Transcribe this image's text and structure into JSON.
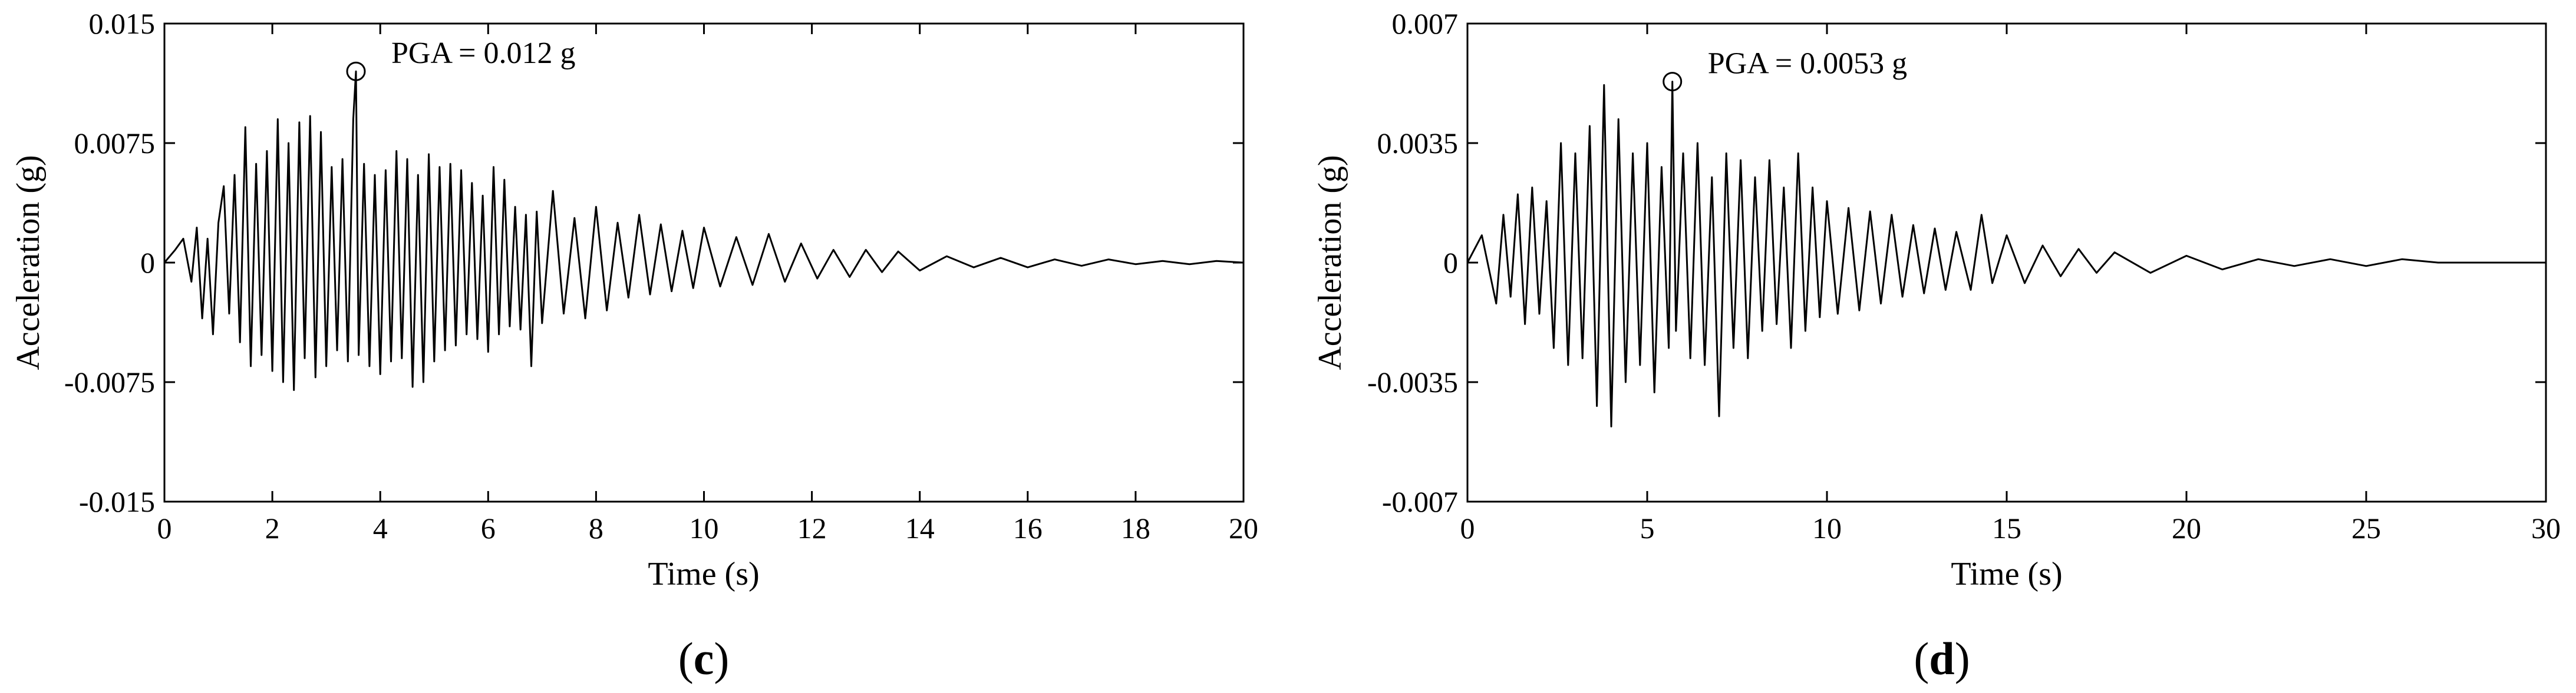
{
  "figure": {
    "panels": [
      {
        "letter": "c",
        "open": "(",
        "close": ")"
      },
      {
        "letter": "d",
        "open": "(",
        "close": ")"
      }
    ]
  },
  "chart_data": [
    {
      "type": "line",
      "title": "",
      "xlabel": "Time (s)",
      "ylabel": "Acceleration (g)",
      "xlim": [
        0,
        20
      ],
      "ylim": [
        -0.015,
        0.015
      ],
      "xticks": [
        0,
        2,
        4,
        6,
        8,
        10,
        12,
        14,
        16,
        18,
        20
      ],
      "yticks": [
        -0.015,
        -0.0075,
        0,
        0.0075,
        0.015
      ],
      "ytick_labels": [
        "-0.015",
        "-0.0075",
        "0",
        "0.0075",
        "0.015"
      ],
      "grid": false,
      "line_color": "#000000",
      "series": [
        {
          "x": [
            0,
            0.2,
            0.35,
            0.5,
            0.6,
            0.7,
            0.8,
            0.9,
            1.0,
            1.1,
            1.2,
            1.3,
            1.4,
            1.5,
            1.6,
            1.7,
            1.8,
            1.9,
            2.0,
            2.1,
            2.2,
            2.3,
            2.4,
            2.5,
            2.6,
            2.7,
            2.8,
            2.9,
            3.0,
            3.1,
            3.2,
            3.3,
            3.4,
            3.5,
            3.55,
            3.6,
            3.7,
            3.8,
            3.9,
            4.0,
            4.1,
            4.2,
            4.3,
            4.4,
            4.5,
            4.6,
            4.7,
            4.8,
            4.9,
            5.0,
            5.1,
            5.2,
            5.3,
            5.4,
            5.5,
            5.6,
            5.7,
            5.8,
            5.9,
            6.0,
            6.1,
            6.2,
            6.3,
            6.4,
            6.5,
            6.6,
            6.7,
            6.8,
            6.9,
            7.0,
            7.2,
            7.4,
            7.6,
            7.8,
            8.0,
            8.2,
            8.4,
            8.6,
            8.8,
            9.0,
            9.2,
            9.4,
            9.6,
            9.8,
            10.0,
            10.3,
            10.6,
            10.9,
            11.2,
            11.5,
            11.8,
            12.1,
            12.4,
            12.7,
            13.0,
            13.3,
            13.6,
            14.0,
            14.5,
            15.0,
            15.5,
            16.0,
            16.5,
            17.0,
            17.5,
            18.0,
            18.5,
            19.0,
            19.5,
            20.0
          ],
          "y": [
            0,
            0.0008,
            0.0015,
            -0.0012,
            0.0022,
            -0.0035,
            0.0015,
            -0.0045,
            0.0025,
            0.0048,
            -0.0032,
            0.0055,
            -0.005,
            0.0085,
            -0.0065,
            0.0062,
            -0.0058,
            0.007,
            -0.0068,
            0.009,
            -0.0075,
            0.0075,
            -0.008,
            0.0088,
            -0.006,
            0.0092,
            -0.0072,
            0.0082,
            -0.0065,
            0.006,
            -0.0055,
            0.0065,
            -0.0062,
            0.009,
            0.012,
            -0.0058,
            0.0062,
            -0.0065,
            0.0055,
            -0.007,
            0.0058,
            -0.0062,
            0.007,
            -0.006,
            0.0065,
            -0.0078,
            0.0055,
            -0.0075,
            0.0068,
            -0.0062,
            0.006,
            -0.0055,
            0.0062,
            -0.0052,
            0.0058,
            -0.0045,
            0.005,
            -0.0048,
            0.0042,
            -0.0056,
            0.006,
            -0.0045,
            0.0052,
            -0.004,
            0.0035,
            -0.0042,
            0.003,
            -0.0065,
            0.0032,
            -0.0038,
            0.0045,
            -0.0032,
            0.0028,
            -0.0035,
            0.0035,
            -0.003,
            0.0025,
            -0.0022,
            0.003,
            -0.002,
            0.0024,
            -0.0018,
            0.002,
            -0.0016,
            0.0022,
            -0.0015,
            0.0016,
            -0.0014,
            0.0018,
            -0.0012,
            0.0012,
            -0.001,
            0.0008,
            -0.0009,
            0.0008,
            -0.0006,
            0.0007,
            -0.0005,
            0.0004,
            -0.0003,
            0.0003,
            -0.0003,
            0.0002,
            -0.0002,
            0.0002,
            -0.0001,
            0.0001,
            -0.0001,
            0.0001,
            0
          ],
          "peak": {
            "x": 3.55,
            "y": 0.012
          }
        }
      ],
      "annotations": [
        {
          "text": "PGA = 0.012 g",
          "x": 3.55,
          "y": 0.012
        }
      ]
    },
    {
      "type": "line",
      "title": "",
      "xlabel": "Time (s)",
      "ylabel": "Acceleration (g)",
      "xlim": [
        0,
        30
      ],
      "ylim": [
        -0.007,
        0.007
      ],
      "xticks": [
        0,
        5,
        10,
        15,
        20,
        25,
        30
      ],
      "yticks": [
        -0.007,
        -0.0035,
        0,
        0.0035,
        0.007
      ],
      "ytick_labels": [
        "-0.007",
        "-0.0035",
        "0",
        "0.0035",
        "0.007"
      ],
      "grid": false,
      "line_color": "#000000",
      "series": [
        {
          "x": [
            0,
            0.4,
            0.8,
            1.0,
            1.2,
            1.4,
            1.6,
            1.8,
            2.0,
            2.2,
            2.4,
            2.6,
            2.8,
            3.0,
            3.2,
            3.4,
            3.6,
            3.8,
            4.0,
            4.2,
            4.4,
            4.6,
            4.8,
            5.0,
            5.2,
            5.4,
            5.6,
            5.7,
            5.8,
            6.0,
            6.2,
            6.4,
            6.6,
            6.8,
            7.0,
            7.2,
            7.4,
            7.6,
            7.8,
            8.0,
            8.2,
            8.4,
            8.6,
            8.8,
            9.0,
            9.2,
            9.4,
            9.6,
            9.8,
            10.0,
            10.3,
            10.6,
            10.9,
            11.2,
            11.5,
            11.8,
            12.1,
            12.4,
            12.7,
            13.0,
            13.3,
            13.6,
            14.0,
            14.3,
            14.6,
            15.0,
            15.5,
            16.0,
            16.5,
            17.0,
            17.5,
            18.0,
            19.0,
            20.0,
            21.0,
            22.0,
            23.0,
            24.0,
            25.0,
            26.0,
            27.0,
            28.0,
            29.0,
            30.0
          ],
          "y": [
            0,
            0.0008,
            -0.0012,
            0.0014,
            -0.001,
            0.002,
            -0.0018,
            0.0022,
            -0.0015,
            0.0018,
            -0.0025,
            0.0035,
            -0.003,
            0.0032,
            -0.0028,
            0.004,
            -0.0042,
            0.0052,
            -0.0048,
            0.0042,
            -0.0035,
            0.0032,
            -0.003,
            0.0035,
            -0.0038,
            0.0028,
            -0.0025,
            0.0053,
            -0.002,
            0.0032,
            -0.0028,
            0.0035,
            -0.003,
            0.0025,
            -0.0045,
            0.0032,
            -0.0025,
            0.003,
            -0.0028,
            0.0025,
            -0.002,
            0.003,
            -0.0018,
            0.0022,
            -0.0025,
            0.0032,
            -0.002,
            0.0022,
            -0.0016,
            0.0018,
            -0.0015,
            0.0016,
            -0.0014,
            0.0015,
            -0.0012,
            0.0014,
            -0.001,
            0.0011,
            -0.0009,
            0.001,
            -0.0008,
            0.0009,
            -0.0008,
            0.0014,
            -0.0006,
            0.0008,
            -0.0006,
            0.0005,
            -0.0004,
            0.0004,
            -0.0003,
            0.0003,
            -0.0003,
            0.0002,
            -0.0002,
            0.0001,
            -0.0001,
            0.0001,
            -0.0001,
            0.0001,
            0,
            0,
            0,
            0
          ],
          "peak": {
            "x": 5.7,
            "y": 0.0053
          }
        }
      ],
      "annotations": [
        {
          "text": "PGA = 0.0053 g",
          "x": 5.7,
          "y": 0.0053
        }
      ]
    }
  ]
}
